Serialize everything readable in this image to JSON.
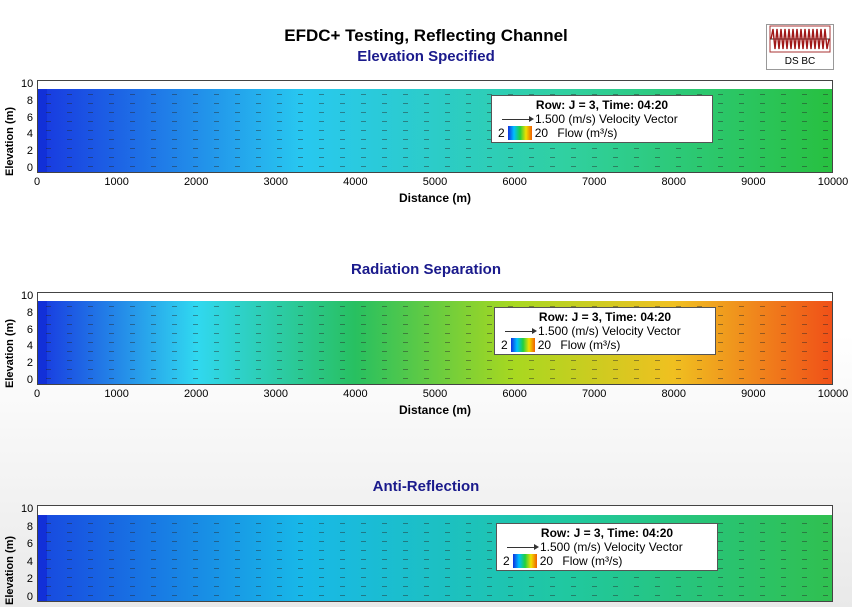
{
  "title": "EFDC+ Testing, Reflecting Channel",
  "badge": {
    "label": "DS BC",
    "icon": "oscillating-wave-icon"
  },
  "chart_data": [
    {
      "type": "heatmap",
      "title": "Elevation Specified",
      "xlabel": "Distance (m)",
      "ylabel": "Elevation (m)",
      "xlim": [
        0,
        10000
      ],
      "ylim": [
        0,
        10
      ],
      "xticks": [
        "0",
        "1000",
        "2000",
        "3000",
        "4000",
        "5000",
        "6000",
        "7000",
        "8000",
        "9000",
        "10000"
      ],
      "yticks": [
        "0",
        "2",
        "4",
        "6",
        "8",
        "10"
      ],
      "colors": [
        "#1838e0",
        "#28c8f0",
        "#30d0a0",
        "#28c040"
      ],
      "legend": {
        "header": "Row: J = 3, Time: 04:20",
        "vector": "1.500 (m/s) Velocity Vector",
        "cmin": "2",
        "cmax": "20",
        "cbar_label": "Flow (m³/s)"
      }
    },
    {
      "type": "heatmap",
      "title": "Radiation Separation",
      "xlabel": "Distance (m)",
      "ylabel": "Elevation (m)",
      "xlim": [
        0,
        10000
      ],
      "ylim": [
        0,
        10
      ],
      "xticks": [
        "0",
        "1000",
        "2000",
        "3000",
        "4000",
        "5000",
        "6000",
        "7000",
        "8000",
        "9000",
        "10000"
      ],
      "yticks": [
        "0",
        "2",
        "4",
        "6",
        "8",
        "10"
      ],
      "colors": [
        "#1838e0",
        "#30d8f0",
        "#28c060",
        "#a8d820",
        "#f0c020",
        "#f05018"
      ],
      "legend": {
        "header": "Row: J = 3, Time: 04:20",
        "vector": "1.500 (m/s) Velocity Vector",
        "cmin": "2",
        "cmax": "20",
        "cbar_label": "Flow (m³/s)"
      }
    },
    {
      "type": "heatmap",
      "title": "Anti-Reflection",
      "xlabel": "",
      "ylabel": "Elevation (m)",
      "xlim": [
        0,
        10000
      ],
      "ylim": [
        0,
        10
      ],
      "xticks": [],
      "yticks": [
        "0",
        "2",
        "4",
        "6",
        "8",
        "10"
      ],
      "colors": [
        "#1848e0",
        "#18b8e8",
        "#20c8a0",
        "#30c050"
      ],
      "legend": {
        "header": "Row: J = 3, Time: 04:20",
        "vector": "1.500 (m/s) Velocity Vector",
        "cmin": "2",
        "cmax": "20",
        "cbar_label": "Flow (m³/s)"
      }
    }
  ]
}
